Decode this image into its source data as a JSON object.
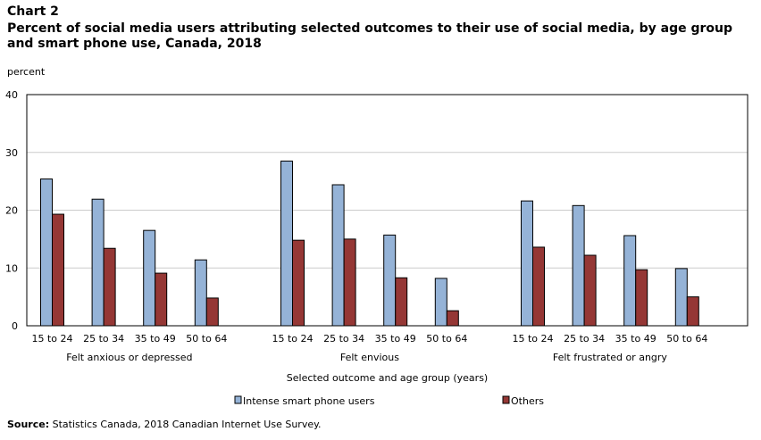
{
  "chart_label": "Chart 2",
  "title": "Percent of social media users attributing selected outcomes to their use of social media, by age group and smart phone use, Canada, 2018",
  "source": {
    "prefix": "Source:",
    "text": " Statistics Canada, 2018 Canadian Internet Use Survey."
  },
  "colors": {
    "intense": "#95b3d7",
    "others": "#953735",
    "grid": "#cccccc"
  },
  "chart_data": {
    "type": "bar",
    "ylabel": "percent",
    "xlabel": "Selected outcome and age group (years)",
    "ylim": [
      0,
      40
    ],
    "yticks": [
      0,
      10,
      20,
      30,
      40
    ],
    "grid": true,
    "legend_position": "bottom",
    "groups": [
      {
        "name": "Felt anxious or depressed",
        "categories": [
          "15 to 24",
          "25 to 34",
          "35 to 49",
          "50 to 64"
        ],
        "series": [
          {
            "name": "Intense smart phone users",
            "values": [
              25.4,
              21.9,
              16.5,
              11.4
            ]
          },
          {
            "name": "Others",
            "values": [
              19.3,
              13.4,
              9.1,
              4.8
            ]
          }
        ]
      },
      {
        "name": "Felt envious",
        "categories": [
          "15 to 24",
          "25 to 34",
          "35 to 49",
          "50 to 64"
        ],
        "series": [
          {
            "name": "Intense smart phone users",
            "values": [
              28.5,
              24.4,
              15.7,
              8.2
            ]
          },
          {
            "name": "Others",
            "values": [
              14.8,
              15.0,
              8.3,
              2.6
            ]
          }
        ]
      },
      {
        "name": "Felt frustrated or angry",
        "categories": [
          "15 to 24",
          "25 to 34",
          "35 to 49",
          "50 to 64"
        ],
        "series": [
          {
            "name": "Intense smart phone users",
            "values": [
              21.6,
              20.8,
              15.6,
              9.9
            ]
          },
          {
            "name": "Others",
            "values": [
              13.6,
              12.2,
              9.7,
              5.0
            ]
          }
        ]
      }
    ]
  }
}
